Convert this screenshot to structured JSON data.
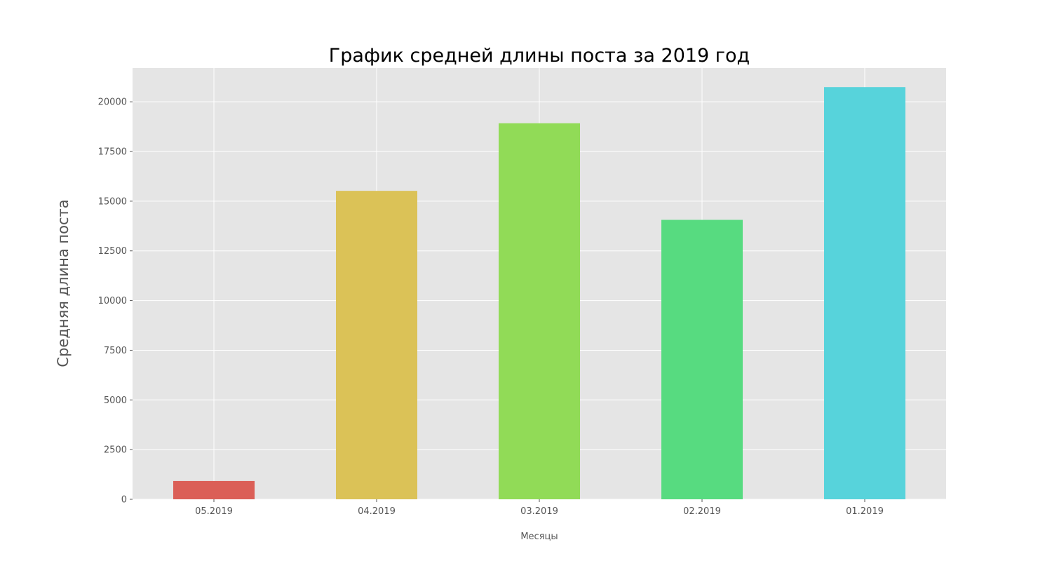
{
  "chart_data": {
    "type": "bar",
    "title": "График средней длины поста за 2019 год",
    "xlabel": "Месяцы",
    "ylabel": "Средняя длина поста",
    "categories": [
      "05.2019",
      "04.2019",
      "03.2019",
      "02.2019",
      "01.2019"
    ],
    "values": [
      920,
      15520,
      18920,
      14060,
      20740
    ],
    "colors": [
      "#db5f57",
      "#dbc257",
      "#91db57",
      "#57db80",
      "#57d3db"
    ],
    "ylim": [
      0,
      21700
    ],
    "yticks": [
      0,
      2500,
      5000,
      7500,
      10000,
      12500,
      15000,
      17500,
      20000
    ],
    "grid": true,
    "background": "#e5e5e5",
    "grid_color": "#ffffff"
  }
}
